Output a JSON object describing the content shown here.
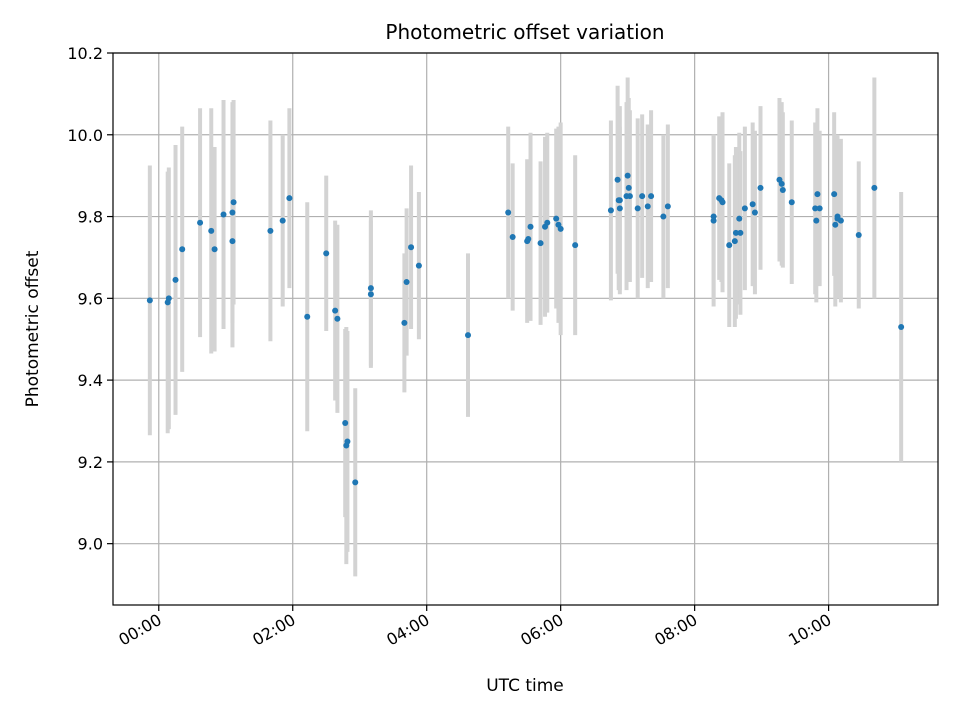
{
  "chart_data": {
    "type": "scatter",
    "title": "Photometric offset variation",
    "xlabel": "UTC time",
    "ylabel": "Photometric offset",
    "xlim": [
      "23:19",
      "11:38"
    ],
    "ylim": [
      8.85,
      10.2
    ],
    "x_ticks": [
      "00:00",
      "02:00",
      "04:00",
      "06:00",
      "08:00",
      "10:00"
    ],
    "y_ticks": [
      "9.0",
      "9.2",
      "9.4",
      "9.6",
      "9.8",
      "10.0",
      "10.2"
    ],
    "grid": true,
    "point_color": "#1f77b4",
    "errorbar_color": "#d3d3d3",
    "series": [
      {
        "x": [
          "23:52",
          "00:08",
          "00:09",
          "00:15",
          "00:21",
          "00:37",
          "00:47",
          "00:50",
          "00:58",
          "01:06",
          "01:06",
          "01:07",
          "01:40",
          "01:51",
          "01:57",
          "02:13",
          "02:30",
          "02:38",
          "02:40",
          "02:47",
          "02:48",
          "02:49",
          "02:56",
          "03:10",
          "03:10",
          "03:40",
          "03:42",
          "03:46",
          "03:53",
          "04:37",
          "05:13",
          "05:17",
          "05:30",
          "05:31",
          "05:33",
          "05:42",
          "05:46",
          "05:48",
          "05:56",
          "05:58",
          "06:00",
          "06:13",
          "06:45",
          "06:51",
          "06:52",
          "06:53",
          "06:53",
          "06:59",
          "07:00",
          "07:01",
          "07:02",
          "07:09",
          "07:13",
          "07:18",
          "07:21",
          "07:32",
          "07:36",
          "08:17",
          "08:17",
          "08:22",
          "08:24",
          "08:25",
          "08:31",
          "08:36",
          "08:37",
          "08:40",
          "08:41",
          "08:45",
          "08:52",
          "08:54",
          "08:59",
          "09:16",
          "09:18",
          "09:19",
          "09:27",
          "09:48",
          "09:49",
          "09:50",
          "09:52",
          "10:05",
          "10:06",
          "10:08",
          "10:08",
          "10:11",
          "10:27",
          "10:41",
          "11:05"
        ],
        "y": [
          9.595,
          9.59,
          9.6,
          9.645,
          9.72,
          9.785,
          9.765,
          9.72,
          9.805,
          9.81,
          9.74,
          9.835,
          9.765,
          9.79,
          9.845,
          9.555,
          9.71,
          9.57,
          9.55,
          9.295,
          9.24,
          9.25,
          9.15,
          9.61,
          9.625,
          9.54,
          9.64,
          9.725,
          9.68,
          9.51,
          9.81,
          9.75,
          9.74,
          9.745,
          9.775,
          9.735,
          9.775,
          9.785,
          9.795,
          9.78,
          9.77,
          9.73,
          9.815,
          9.89,
          9.84,
          9.82,
          9.84,
          9.85,
          9.9,
          9.87,
          9.85,
          9.82,
          9.85,
          9.825,
          9.85,
          9.8,
          9.825,
          9.8,
          9.79,
          9.845,
          9.84,
          9.835,
          9.73,
          9.74,
          9.76,
          9.795,
          9.76,
          9.82,
          9.83,
          9.81,
          9.87,
          9.89,
          9.88,
          9.865,
          9.835,
          9.82,
          9.79,
          9.855,
          9.82,
          9.855,
          9.78,
          9.8,
          9.795,
          9.79,
          9.755,
          9.87,
          9.53
        ],
        "yerr": [
          0.33,
          0.32,
          0.32,
          0.33,
          0.3,
          0.28,
          0.3,
          0.25,
          0.28,
          0.27,
          0.26,
          0.25,
          0.27,
          0.21,
          0.22,
          0.28,
          0.19,
          0.22,
          0.23,
          0.23,
          0.29,
          0.27,
          0.23,
          0.18,
          0.19,
          0.17,
          0.18,
          0.2,
          0.18,
          0.2,
          0.21,
          0.18,
          0.2,
          0.19,
          0.23,
          0.2,
          0.22,
          0.22,
          0.22,
          0.24,
          0.26,
          0.22,
          0.22,
          0.23,
          0.22,
          0.2,
          0.23,
          0.23,
          0.24,
          0.22,
          0.21,
          0.22,
          0.2,
          0.2,
          0.21,
          0.2,
          0.2,
          0.2,
          0.21,
          0.2,
          0.2,
          0.22,
          0.2,
          0.21,
          0.21,
          0.21,
          0.2,
          0.2,
          0.2,
          0.2,
          0.2,
          0.2,
          0.2,
          0.19,
          0.2,
          0.21,
          0.2,
          0.21,
          0.19,
          0.2,
          0.2,
          0.2,
          0.19,
          0.2,
          0.18,
          0.27,
          0.33
        ]
      }
    ]
  }
}
